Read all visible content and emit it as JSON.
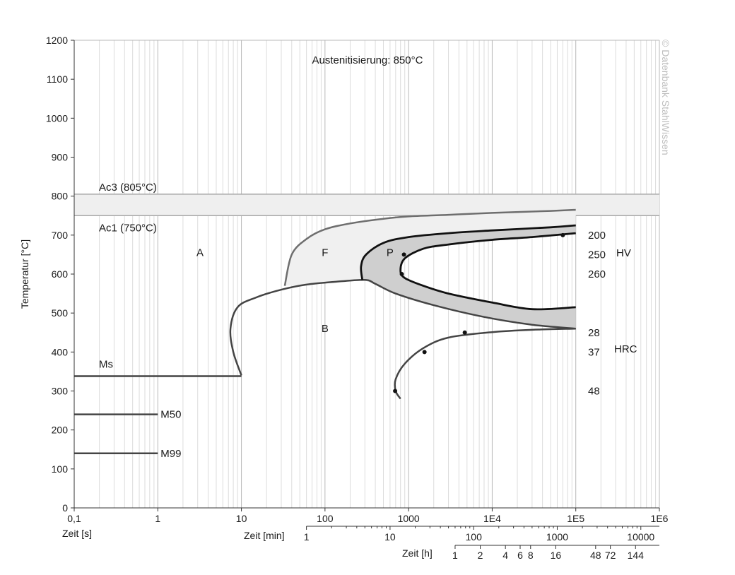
{
  "chart_data": {
    "type": "line",
    "title": "Austenitisierung: 850°C",
    "watermark": "© Datenbank StahlWissen",
    "ylabel": "Temperatur [°C]",
    "ylim": [
      0,
      1200
    ],
    "yticks": [
      "0",
      "100",
      "200",
      "300",
      "400",
      "500",
      "600",
      "700",
      "800",
      "900",
      "1000",
      "1100",
      "1200"
    ],
    "x_scale": "log",
    "xlim_s": [
      0.1,
      1000000
    ],
    "xlabel_s": "Zeit [s]",
    "xticks_s": [
      {
        "v": 0.1,
        "label": "0,1"
      },
      {
        "v": 1,
        "label": "1"
      },
      {
        "v": 10,
        "label": "10"
      },
      {
        "v": 100,
        "label": "100"
      },
      {
        "v": 1000,
        "label": "1000"
      },
      {
        "v": 10000,
        "label": "1E4"
      },
      {
        "v": 100000,
        "label": "1E5"
      },
      {
        "v": 1000000,
        "label": "1E6"
      }
    ],
    "xlabel_min": "Zeit [min]",
    "xticks_min": [
      {
        "v": 60,
        "label": "1"
      },
      {
        "v": 600,
        "label": "10"
      },
      {
        "v": 6000,
        "label": "100"
      },
      {
        "v": 60000,
        "label": "1000"
      },
      {
        "v": 600000,
        "label": "10000"
      }
    ],
    "xlabel_h": "Zeit [h]",
    "xticks_h": [
      {
        "v": 3600,
        "label": "1"
      },
      {
        "v": 7200,
        "label": "2"
      },
      {
        "v": 14400,
        "label": "4"
      },
      {
        "v": 21600,
        "label": "6"
      },
      {
        "v": 28800,
        "label": "8"
      },
      {
        "v": 57600,
        "label": "16"
      },
      {
        "v": 172800,
        "label": "48"
      },
      {
        "v": 259200,
        "label": "72"
      },
      {
        "v": 518400,
        "label": "144"
      }
    ],
    "grid": true,
    "bands": [
      {
        "label": "Ac3 (805°C)",
        "temp": 805
      },
      {
        "label": "Ac1 (750°C)",
        "temp": 750
      }
    ],
    "temp_lines": [
      {
        "label": "Ms",
        "temp": 338,
        "t_end": 10
      },
      {
        "label": "M50",
        "temp": 240,
        "t_end": 1
      },
      {
        "label": "M99",
        "temp": 140,
        "t_end": 1
      }
    ],
    "phase_labels": [
      {
        "label": "A",
        "t": 3.2,
        "temp": 655
      },
      {
        "label": "F",
        "t": 100,
        "temp": 655
      },
      {
        "label": "P",
        "t": 600,
        "temp": 655
      },
      {
        "label": "B",
        "t": 100,
        "temp": 460
      }
    ],
    "curves": {
      "ferrite_start": [
        [
          33,
          570
        ],
        [
          40,
          650
        ],
        [
          60,
          690
        ],
        [
          100,
          715
        ],
        [
          200,
          730
        ],
        [
          500,
          742
        ],
        [
          1000,
          748
        ],
        [
          3000,
          752
        ],
        [
          10000,
          757
        ],
        [
          50000,
          762
        ],
        [
          100000,
          765
        ]
      ],
      "pearlite_start": [
        [
          280,
          585
        ],
        [
          270,
          620
        ],
        [
          310,
          650
        ],
        [
          500,
          680
        ],
        [
          1000,
          695
        ],
        [
          3000,
          705
        ],
        [
          10000,
          712
        ],
        [
          50000,
          720
        ],
        [
          100000,
          725
        ]
      ],
      "pearlite_end": [
        [
          100000,
          705
        ],
        [
          30000,
          695
        ],
        [
          10000,
          688
        ],
        [
          3000,
          676
        ],
        [
          1500,
          665
        ],
        [
          900,
          640
        ],
        [
          800,
          610
        ],
        [
          900,
          590
        ],
        [
          1500,
          570
        ],
        [
          3000,
          550
        ],
        [
          10000,
          527
        ],
        [
          30000,
          510
        ],
        [
          100000,
          515
        ]
      ],
      "bainite_start": [
        [
          10,
          340
        ],
        [
          8,
          400
        ],
        [
          7.4,
          460
        ],
        [
          9,
          515
        ],
        [
          15,
          540
        ],
        [
          30,
          560
        ],
        [
          60,
          573
        ],
        [
          130,
          580
        ],
        [
          300,
          585
        ],
        [
          400,
          575
        ],
        [
          700,
          550
        ],
        [
          2000,
          520
        ],
        [
          8000,
          490
        ],
        [
          30000,
          470
        ],
        [
          100000,
          460
        ]
      ],
      "bainite_end": [
        [
          800,
          280
        ],
        [
          700,
          300
        ],
        [
          700,
          330
        ],
        [
          900,
          370
        ],
        [
          1500,
          410
        ],
        [
          3000,
          437
        ],
        [
          10000,
          451
        ],
        [
          30000,
          457
        ],
        [
          100000,
          460
        ]
      ]
    },
    "hardness_markers": [
      {
        "t": 70000,
        "temp": 700
      },
      {
        "t": 880,
        "temp": 650
      },
      {
        "t": 830,
        "temp": 600
      },
      {
        "t": 4700,
        "temp": 450
      },
      {
        "t": 1550,
        "temp": 400
      },
      {
        "t": 690,
        "temp": 300
      }
    ],
    "hv_values": [
      {
        "label": "200",
        "temp": 700
      },
      {
        "label": "250",
        "temp": 650
      },
      {
        "label": "260",
        "temp": 600
      }
    ],
    "hrc_values": [
      {
        "label": "28",
        "temp": 450
      },
      {
        "label": "37",
        "temp": 400
      },
      {
        "label": "48",
        "temp": 300
      }
    ],
    "hv_unit": "HV",
    "hrc_unit": "HRC"
  }
}
